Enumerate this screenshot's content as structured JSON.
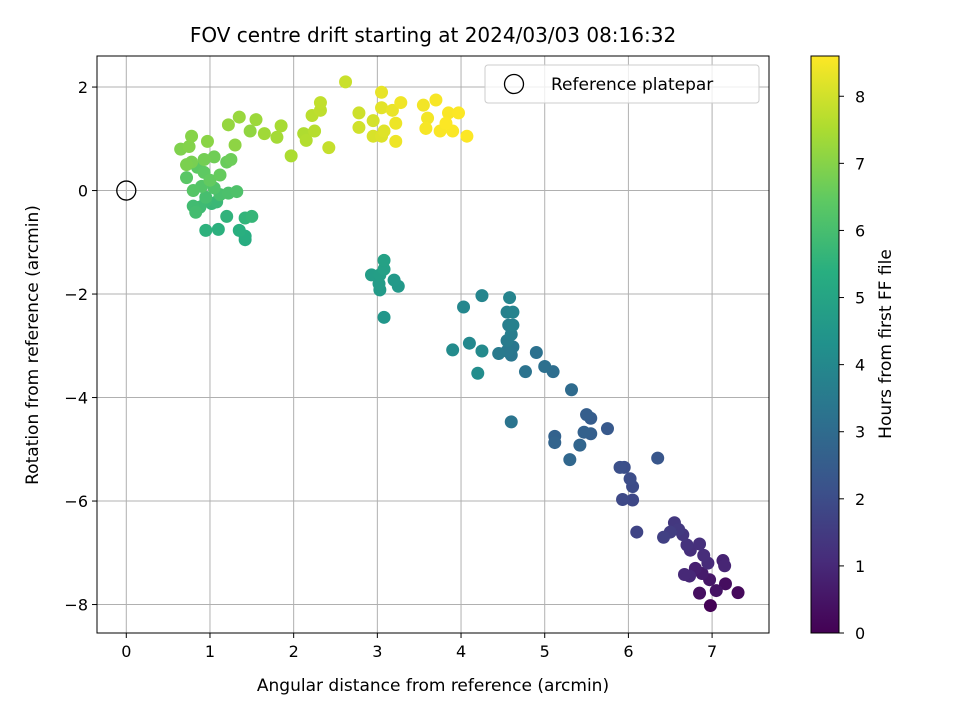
{
  "chart_data": {
    "type": "scatter",
    "title": "FOV centre drift starting at 2024/03/03 08:16:32",
    "xlabel": "Angular distance from reference (arcmin)",
    "ylabel": "Rotation from reference (arcmin)",
    "xlim": [
      -0.35,
      7.68
    ],
    "ylim": [
      -8.55,
      2.6
    ],
    "xticks": [
      "0",
      "1",
      "2",
      "3",
      "4",
      "5",
      "6",
      "7"
    ],
    "yticks": [
      "−8",
      "−6",
      "−4",
      "−2",
      "0",
      "2"
    ],
    "grid": true,
    "legend": {
      "position": "top-right",
      "entries": [
        "Reference platepar"
      ]
    },
    "reference_point": {
      "x": 0,
      "y": 0
    },
    "colorbar": {
      "label": "Hours from first FF file",
      "range": [
        0,
        8.6
      ],
      "ticks": [
        "0",
        "1",
        "2",
        "3",
        "4",
        "5",
        "6",
        "7",
        "8"
      ],
      "colormap": "viridis"
    },
    "points": [
      {
        "x": 6.98,
        "y": -8.02,
        "h": 0.05
      },
      {
        "x": 7.31,
        "y": -7.77,
        "h": 0.2
      },
      {
        "x": 7.16,
        "y": -7.6,
        "h": 0.3
      },
      {
        "x": 6.85,
        "y": -7.78,
        "h": 0.35
      },
      {
        "x": 7.05,
        "y": -7.73,
        "h": 0.45
      },
      {
        "x": 6.97,
        "y": -7.52,
        "h": 0.55
      },
      {
        "x": 6.88,
        "y": -7.4,
        "h": 0.65
      },
      {
        "x": 6.8,
        "y": -7.3,
        "h": 0.75
      },
      {
        "x": 7.13,
        "y": -7.15,
        "h": 0.85
      },
      {
        "x": 7.15,
        "y": -7.25,
        "h": 0.9
      },
      {
        "x": 6.73,
        "y": -7.45,
        "h": 0.95
      },
      {
        "x": 6.67,
        "y": -7.42,
        "h": 1.0
      },
      {
        "x": 6.95,
        "y": -7.2,
        "h": 1.05
      },
      {
        "x": 6.9,
        "y": -7.05,
        "h": 1.1
      },
      {
        "x": 6.74,
        "y": -6.95,
        "h": 1.15
      },
      {
        "x": 6.85,
        "y": -6.83,
        "h": 1.2
      },
      {
        "x": 6.7,
        "y": -6.85,
        "h": 1.25
      },
      {
        "x": 6.65,
        "y": -6.65,
        "h": 1.35
      },
      {
        "x": 6.55,
        "y": -6.42,
        "h": 1.4
      },
      {
        "x": 6.6,
        "y": -6.55,
        "h": 1.45
      },
      {
        "x": 6.5,
        "y": -6.6,
        "h": 1.55
      },
      {
        "x": 6.42,
        "y": -6.7,
        "h": 1.65
      },
      {
        "x": 6.1,
        "y": -6.6,
        "h": 1.75
      },
      {
        "x": 6.05,
        "y": -5.98,
        "h": 1.85
      },
      {
        "x": 5.93,
        "y": -5.97,
        "h": 1.9
      },
      {
        "x": 6.05,
        "y": -5.72,
        "h": 1.95
      },
      {
        "x": 6.02,
        "y": -5.57,
        "h": 2.0
      },
      {
        "x": 5.95,
        "y": -5.35,
        "h": 2.05
      },
      {
        "x": 5.9,
        "y": -5.35,
        "h": 2.1
      },
      {
        "x": 6.35,
        "y": -5.17,
        "h": 2.3
      },
      {
        "x": 5.75,
        "y": -4.6,
        "h": 2.4
      },
      {
        "x": 5.55,
        "y": -4.4,
        "h": 2.5
      },
      {
        "x": 5.5,
        "y": -4.33,
        "h": 2.55
      },
      {
        "x": 5.55,
        "y": -4.7,
        "h": 2.6
      },
      {
        "x": 5.47,
        "y": -4.67,
        "h": 2.65
      },
      {
        "x": 5.12,
        "y": -4.75,
        "h": 2.7
      },
      {
        "x": 5.12,
        "y": -4.87,
        "h": 2.75
      },
      {
        "x": 5.42,
        "y": -4.92,
        "h": 2.8
      },
      {
        "x": 5.3,
        "y": -5.2,
        "h": 2.85
      },
      {
        "x": 5.32,
        "y": -3.85,
        "h": 3.0
      },
      {
        "x": 5.1,
        "y": -3.5,
        "h": 3.1
      },
      {
        "x": 5.0,
        "y": -3.4,
        "h": 3.15
      },
      {
        "x": 4.9,
        "y": -3.13,
        "h": 3.2
      },
      {
        "x": 4.77,
        "y": -3.5,
        "h": 3.25
      },
      {
        "x": 4.6,
        "y": -4.47,
        "h": 3.3
      },
      {
        "x": 4.6,
        "y": -3.18,
        "h": 3.35
      },
      {
        "x": 4.62,
        "y": -3.02,
        "h": 3.4
      },
      {
        "x": 4.55,
        "y": -3.1,
        "h": 3.45
      },
      {
        "x": 4.45,
        "y": -3.15,
        "h": 3.5
      },
      {
        "x": 4.55,
        "y": -2.9,
        "h": 3.55
      },
      {
        "x": 4.6,
        "y": -2.78,
        "h": 3.6
      },
      {
        "x": 4.57,
        "y": -2.6,
        "h": 3.65
      },
      {
        "x": 4.62,
        "y": -2.6,
        "h": 3.7
      },
      {
        "x": 4.55,
        "y": -2.35,
        "h": 3.75
      },
      {
        "x": 4.62,
        "y": -2.35,
        "h": 3.8
      },
      {
        "x": 4.58,
        "y": -2.07,
        "h": 3.85
      },
      {
        "x": 4.25,
        "y": -2.03,
        "h": 3.9
      },
      {
        "x": 4.03,
        "y": -2.25,
        "h": 3.95
      },
      {
        "x": 4.1,
        "y": -2.95,
        "h": 4.0
      },
      {
        "x": 4.25,
        "y": -3.1,
        "h": 4.05
      },
      {
        "x": 3.9,
        "y": -3.08,
        "h": 4.1
      },
      {
        "x": 4.2,
        "y": -3.53,
        "h": 4.15
      },
      {
        "x": 3.08,
        "y": -2.45,
        "h": 4.5
      },
      {
        "x": 3.25,
        "y": -1.85,
        "h": 4.55
      },
      {
        "x": 3.2,
        "y": -1.73,
        "h": 4.6
      },
      {
        "x": 3.03,
        "y": -1.92,
        "h": 4.65
      },
      {
        "x": 3.02,
        "y": -1.8,
        "h": 4.7
      },
      {
        "x": 2.93,
        "y": -1.63,
        "h": 4.75
      },
      {
        "x": 3.03,
        "y": -1.63,
        "h": 4.8
      },
      {
        "x": 3.08,
        "y": -1.52,
        "h": 4.85
      },
      {
        "x": 3.08,
        "y": -1.35,
        "h": 4.9
      },
      {
        "x": 1.42,
        "y": -0.95,
        "h": 5.3
      },
      {
        "x": 1.42,
        "y": -0.88,
        "h": 5.35
      },
      {
        "x": 1.35,
        "y": -0.77,
        "h": 5.4
      },
      {
        "x": 1.1,
        "y": -0.75,
        "h": 5.45
      },
      {
        "x": 0.95,
        "y": -0.77,
        "h": 5.5
      },
      {
        "x": 1.2,
        "y": -0.5,
        "h": 5.55
      },
      {
        "x": 1.42,
        "y": -0.53,
        "h": 5.6
      },
      {
        "x": 1.5,
        "y": -0.5,
        "h": 5.65
      },
      {
        "x": 1.02,
        "y": -0.25,
        "h": 5.7
      },
      {
        "x": 1.08,
        "y": -0.22,
        "h": 5.75
      },
      {
        "x": 0.95,
        "y": -0.2,
        "h": 5.8
      },
      {
        "x": 0.88,
        "y": -0.32,
        "h": 5.85
      },
      {
        "x": 0.8,
        "y": -0.3,
        "h": 5.9
      },
      {
        "x": 0.83,
        "y": -0.42,
        "h": 5.95
      },
      {
        "x": 0.95,
        "y": -0.13,
        "h": 6.0
      },
      {
        "x": 1.12,
        "y": -0.08,
        "h": 6.05
      },
      {
        "x": 1.22,
        "y": -0.05,
        "h": 6.1
      },
      {
        "x": 1.32,
        "y": -0.02,
        "h": 6.15
      },
      {
        "x": 1.05,
        "y": 0.05,
        "h": 6.2
      },
      {
        "x": 0.9,
        "y": 0.08,
        "h": 6.25
      },
      {
        "x": 0.8,
        "y": 0.0,
        "h": 6.3
      },
      {
        "x": 0.72,
        "y": 0.25,
        "h": 6.35
      },
      {
        "x": 0.85,
        "y": 0.45,
        "h": 6.4
      },
      {
        "x": 0.93,
        "y": 0.35,
        "h": 6.45
      },
      {
        "x": 1.0,
        "y": 0.2,
        "h": 6.5
      },
      {
        "x": 1.12,
        "y": 0.3,
        "h": 6.55
      },
      {
        "x": 1.2,
        "y": 0.55,
        "h": 6.6
      },
      {
        "x": 1.25,
        "y": 0.6,
        "h": 6.65
      },
      {
        "x": 1.05,
        "y": 0.65,
        "h": 6.7
      },
      {
        "x": 0.93,
        "y": 0.6,
        "h": 6.75
      },
      {
        "x": 0.78,
        "y": 0.55,
        "h": 6.8
      },
      {
        "x": 0.72,
        "y": 0.5,
        "h": 6.85
      },
      {
        "x": 0.65,
        "y": 0.8,
        "h": 6.9
      },
      {
        "x": 0.75,
        "y": 0.85,
        "h": 6.95
      },
      {
        "x": 0.78,
        "y": 1.05,
        "h": 7.0
      },
      {
        "x": 0.97,
        "y": 0.95,
        "h": 7.05
      },
      {
        "x": 1.3,
        "y": 0.88,
        "h": 7.1
      },
      {
        "x": 1.48,
        "y": 1.15,
        "h": 7.15
      },
      {
        "x": 1.22,
        "y": 1.27,
        "h": 7.2
      },
      {
        "x": 1.35,
        "y": 1.42,
        "h": 7.25
      },
      {
        "x": 1.55,
        "y": 1.37,
        "h": 7.3
      },
      {
        "x": 1.65,
        "y": 1.1,
        "h": 7.35
      },
      {
        "x": 1.8,
        "y": 1.03,
        "h": 7.4
      },
      {
        "x": 1.85,
        "y": 1.25,
        "h": 7.45
      },
      {
        "x": 1.97,
        "y": 0.67,
        "h": 7.5
      },
      {
        "x": 2.12,
        "y": 1.1,
        "h": 7.55
      },
      {
        "x": 2.15,
        "y": 0.97,
        "h": 7.6
      },
      {
        "x": 2.25,
        "y": 1.15,
        "h": 7.65
      },
      {
        "x": 2.22,
        "y": 1.45,
        "h": 7.7
      },
      {
        "x": 2.32,
        "y": 1.55,
        "h": 7.75
      },
      {
        "x": 2.32,
        "y": 1.7,
        "h": 7.8
      },
      {
        "x": 2.42,
        "y": 0.83,
        "h": 7.85
      },
      {
        "x": 2.62,
        "y": 2.1,
        "h": 7.9
      },
      {
        "x": 2.78,
        "y": 1.5,
        "h": 7.95
      },
      {
        "x": 2.78,
        "y": 1.22,
        "h": 8.0
      },
      {
        "x": 2.95,
        "y": 1.35,
        "h": 8.05
      },
      {
        "x": 2.95,
        "y": 1.05,
        "h": 8.1
      },
      {
        "x": 3.05,
        "y": 1.05,
        "h": 8.15
      },
      {
        "x": 3.08,
        "y": 1.15,
        "h": 8.2
      },
      {
        "x": 3.05,
        "y": 1.6,
        "h": 8.25
      },
      {
        "x": 3.05,
        "y": 1.9,
        "h": 8.3
      },
      {
        "x": 3.18,
        "y": 1.55,
        "h": 8.35
      },
      {
        "x": 3.22,
        "y": 1.3,
        "h": 8.38
      },
      {
        "x": 3.22,
        "y": 0.95,
        "h": 8.4
      },
      {
        "x": 3.28,
        "y": 1.7,
        "h": 8.42
      },
      {
        "x": 3.55,
        "y": 1.65,
        "h": 8.45
      },
      {
        "x": 3.6,
        "y": 1.4,
        "h": 8.47
      },
      {
        "x": 3.58,
        "y": 1.2,
        "h": 8.5
      },
      {
        "x": 3.7,
        "y": 1.75,
        "h": 8.52
      },
      {
        "x": 3.75,
        "y": 1.15,
        "h": 8.54
      },
      {
        "x": 3.85,
        "y": 1.5,
        "h": 8.55
      },
      {
        "x": 3.9,
        "y": 1.15,
        "h": 8.56
      },
      {
        "x": 3.97,
        "y": 1.5,
        "h": 8.57
      },
      {
        "x": 4.07,
        "y": 1.05,
        "h": 8.58
      },
      {
        "x": 3.82,
        "y": 1.3,
        "h": 8.59
      }
    ]
  }
}
